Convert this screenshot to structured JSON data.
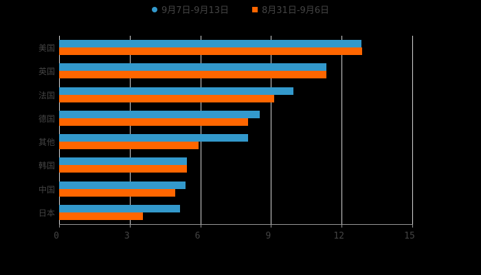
{
  "chart_data": {
    "type": "bar",
    "orientation": "horizontal",
    "title": "",
    "categories": [
      "美国",
      "英国",
      "法国",
      "德国",
      "其他",
      "韩国",
      "中国",
      "日本"
    ],
    "series": [
      {
        "name": "9月7日-9月13日",
        "color": "#3399cc",
        "values": [
          12.85,
          11.35,
          9.95,
          8.52,
          8.02,
          5.43,
          5.37,
          5.14
        ]
      },
      {
        "name": "8月31日-9月6日",
        "color": "#ff6600",
        "values": [
          12.87,
          11.35,
          9.13,
          8.02,
          5.92,
          5.43,
          4.93,
          3.56
        ]
      }
    ],
    "xlabel": "",
    "ylabel": "",
    "xlim": [
      0,
      15
    ],
    "xticks": [
      "0",
      "3",
      "6",
      "9",
      "12",
      "15"
    ],
    "grid": true,
    "legend_position": "top"
  },
  "legend": {
    "items": [
      {
        "label": "9月7日-9月13日",
        "color": "#3399cc"
      },
      {
        "label": "8月31日-9月6日",
        "color": "#ff6600"
      }
    ]
  }
}
